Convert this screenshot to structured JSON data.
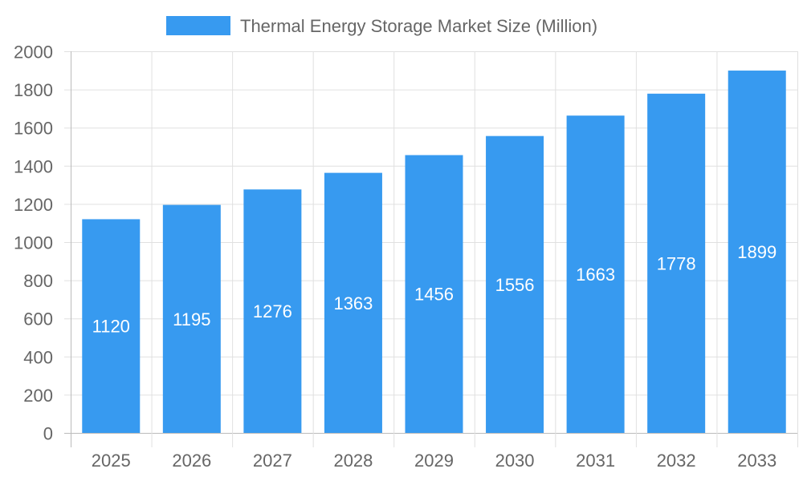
{
  "chart_data": {
    "type": "bar",
    "title": "",
    "xlabel": "",
    "ylabel": "",
    "categories": [
      "2025",
      "2026",
      "2027",
      "2028",
      "2029",
      "2030",
      "2031",
      "2032",
      "2033"
    ],
    "series": [
      {
        "name": "Thermal Energy Storage Market Size (Million)",
        "values": [
          1120,
          1195,
          1276,
          1363,
          1456,
          1556,
          1663,
          1778,
          1899
        ],
        "color": "#379AF0"
      }
    ],
    "ylim": [
      0,
      2000
    ],
    "yticks": [
      0,
      200,
      400,
      600,
      800,
      1000,
      1200,
      1400,
      1600,
      1800,
      2000
    ],
    "grid": true,
    "legend_position": "top",
    "data_labels": true
  }
}
